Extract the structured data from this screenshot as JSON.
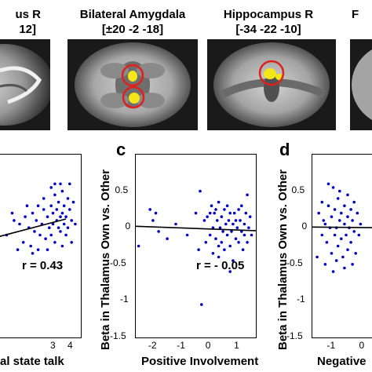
{
  "panels": {
    "top": [
      {
        "title": "us R",
        "coords": "12]"
      },
      {
        "title": "Bilateral Amygdala",
        "coords": "[±20 -2 -18]"
      },
      {
        "title": "Hippocampus R",
        "coords": "[-34 -22 -10]"
      },
      {
        "title": "F",
        "coords": ""
      }
    ],
    "letters": {
      "c": "c",
      "d": "d"
    }
  },
  "colors": {
    "points": "#0000cc",
    "roi_circle": "#e0201c",
    "activation": "#f5e61a",
    "fit_line": "#000000"
  },
  "chart_data": [
    {
      "type": "scatter",
      "panel": "b",
      "xlabel": "al state talk",
      "ylabel": "",
      "annotation": "r = 0.43",
      "xlim": [
        0.2,
        4.6
      ],
      "ylim": [
        -1.5,
        1.0
      ],
      "xticks": [
        3,
        4
      ],
      "fit": {
        "x": [
          0.2,
          3.8
        ],
        "y": [
          -0.12,
          0.12
        ]
      },
      "points": [
        [
          0.6,
          -0.1
        ],
        [
          1.0,
          0.1
        ],
        [
          1.3,
          0.05
        ],
        [
          1.5,
          -0.2
        ],
        [
          1.6,
          0.15
        ],
        [
          1.8,
          0.0
        ],
        [
          1.9,
          -0.25
        ],
        [
          2.0,
          0.2
        ],
        [
          2.1,
          -0.05
        ],
        [
          2.2,
          0.1
        ],
        [
          2.3,
          0.3
        ],
        [
          2.4,
          -0.1
        ],
        [
          2.5,
          0.05
        ],
        [
          2.6,
          0.25
        ],
        [
          2.7,
          -0.15
        ],
        [
          2.8,
          0.15
        ],
        [
          2.9,
          0.0
        ],
        [
          3.0,
          0.3
        ],
        [
          3.0,
          -0.1
        ],
        [
          3.1,
          0.2
        ],
        [
          3.1,
          0.05
        ],
        [
          3.2,
          0.45
        ],
        [
          3.2,
          -0.2
        ],
        [
          3.3,
          0.1
        ],
        [
          3.3,
          0.25
        ],
        [
          3.4,
          0.0
        ],
        [
          3.4,
          0.35
        ],
        [
          3.5,
          0.15
        ],
        [
          3.5,
          -0.05
        ],
        [
          3.6,
          0.5
        ],
        [
          3.6,
          0.2
        ],
        [
          3.7,
          0.05
        ],
        [
          3.7,
          0.3
        ],
        [
          3.8,
          -0.1
        ],
        [
          3.8,
          0.15
        ],
        [
          3.9,
          0.4
        ],
        [
          3.9,
          0.0
        ],
        [
          4.0,
          0.25
        ],
        [
          4.1,
          0.1
        ],
        [
          4.1,
          -0.2
        ],
        [
          4.2,
          0.35
        ],
        [
          1.2,
          -0.3
        ],
        [
          2.0,
          -0.35
        ],
        [
          3.5,
          0.6
        ],
        [
          2.6,
          0.4
        ],
        [
          3.0,
          0.55
        ],
        [
          4.0,
          0.6
        ],
        [
          1.7,
          0.3
        ],
        [
          2.3,
          -0.3
        ],
        [
          3.6,
          -0.25
        ],
        [
          0.9,
          0.2
        ],
        [
          2.8,
          -0.3
        ],
        [
          3.2,
          0.6
        ],
        [
          4.3,
          0.05
        ]
      ]
    },
    {
      "type": "scatter",
      "panel": "c",
      "xlabel": "Positive Involvement",
      "ylabel": "Beta in Thalamus  Own vs. Other",
      "annotation": "r = - 0.05",
      "xlim": [
        -2.6,
        1.6
      ],
      "ylim": [
        -1.5,
        1.0
      ],
      "xticks": [
        -2,
        -1,
        0,
        1
      ],
      "yticks": [
        -1.5,
        -1,
        -0.5,
        0,
        0.5
      ],
      "fit": {
        "x": [
          -2.6,
          1.6
        ],
        "y": [
          0.02,
          -0.04
        ]
      },
      "points": [
        [
          -2.1,
          0.25
        ],
        [
          -2.0,
          0.1
        ],
        [
          -1.9,
          0.2
        ],
        [
          -1.8,
          -0.05
        ],
        [
          -1.5,
          -0.15
        ],
        [
          -2.5,
          -0.25
        ],
        [
          -1.2,
          0.05
        ],
        [
          -0.8,
          -0.1
        ],
        [
          -0.5,
          0.2
        ],
        [
          -0.4,
          -0.3
        ],
        [
          -0.35,
          0.5
        ],
        [
          -0.3,
          -1.05
        ],
        [
          -0.2,
          0.1
        ],
        [
          -0.15,
          -0.2
        ],
        [
          -0.1,
          0.15
        ],
        [
          0.0,
          -0.1
        ],
        [
          0.05,
          0.3
        ],
        [
          0.1,
          0.0
        ],
        [
          0.1,
          -0.35
        ],
        [
          0.15,
          0.2
        ],
        [
          0.2,
          -0.15
        ],
        [
          0.25,
          0.1
        ],
        [
          0.3,
          -0.4
        ],
        [
          0.3,
          0.35
        ],
        [
          0.35,
          0.0
        ],
        [
          0.4,
          -0.2
        ],
        [
          0.4,
          0.15
        ],
        [
          0.45,
          -0.05
        ],
        [
          0.5,
          0.25
        ],
        [
          0.5,
          -0.3
        ],
        [
          0.55,
          0.05
        ],
        [
          0.6,
          -0.1
        ],
        [
          0.6,
          0.3
        ],
        [
          0.65,
          0.1
        ],
        [
          0.7,
          -0.25
        ],
        [
          0.7,
          0.2
        ],
        [
          0.75,
          -0.05
        ],
        [
          0.8,
          0.05
        ],
        [
          0.8,
          -0.45
        ],
        [
          0.85,
          0.2
        ],
        [
          0.9,
          -0.15
        ],
        [
          0.9,
          0.1
        ],
        [
          0.95,
          0.0
        ],
        [
          1.0,
          0.25
        ],
        [
          1.0,
          -0.2
        ],
        [
          1.05,
          0.1
        ],
        [
          1.1,
          -0.05
        ],
        [
          1.1,
          0.3
        ],
        [
          1.15,
          -0.3
        ],
        [
          1.2,
          0.05
        ],
        [
          1.2,
          -0.1
        ],
        [
          1.25,
          0.2
        ],
        [
          1.3,
          -0.2
        ],
        [
          1.35,
          0.0
        ],
        [
          1.4,
          0.15
        ],
        [
          1.45,
          -0.1
        ],
        [
          0.3,
          -0.25
        ],
        [
          0.0,
          0.2
        ],
        [
          0.2,
          0.25
        ],
        [
          0.7,
          -0.6
        ],
        [
          1.3,
          0.45
        ]
      ]
    },
    {
      "type": "scatter",
      "panel": "d",
      "xlabel": "Negative",
      "ylabel": "Beta in Thalamus  Own vs. Other",
      "annotation": "",
      "xlim": [
        -1.6,
        0.6
      ],
      "ylim": [
        -1.5,
        1.0
      ],
      "xticks": [
        -1,
        0
      ],
      "yticks": [
        -1.5,
        -1,
        -0.5,
        0,
        0.5
      ],
      "fit": {
        "x": [
          -1.6,
          0.6
        ],
        "y": [
          0.01,
          0.0
        ]
      },
      "points": [
        [
          -1.4,
          0.2
        ],
        [
          -1.3,
          -0.1
        ],
        [
          -1.3,
          0.35
        ],
        [
          -1.2,
          0.05
        ],
        [
          -1.15,
          -0.2
        ],
        [
          -1.1,
          0.3
        ],
        [
          -1.05,
          0.0
        ],
        [
          -1.0,
          -0.35
        ],
        [
          -1.0,
          0.15
        ],
        [
          -0.95,
          0.55
        ],
        [
          -0.9,
          -0.1
        ],
        [
          -0.9,
          0.25
        ],
        [
          -0.85,
          0.0
        ],
        [
          -0.8,
          -0.25
        ],
        [
          -0.8,
          0.4
        ],
        [
          -0.75,
          0.1
        ],
        [
          -0.7,
          -0.15
        ],
        [
          -0.7,
          0.2
        ],
        [
          -0.65,
          -0.4
        ],
        [
          -0.6,
          0.05
        ],
        [
          -0.6,
          0.3
        ],
        [
          -0.55,
          -0.1
        ],
        [
          -0.5,
          0.15
        ],
        [
          -0.5,
          -0.3
        ],
        [
          -0.45,
          0.0
        ],
        [
          -0.4,
          0.25
        ],
        [
          -0.4,
          -0.2
        ],
        [
          -0.35,
          0.1
        ],
        [
          -0.3,
          -0.05
        ],
        [
          -0.3,
          0.35
        ],
        [
          -0.25,
          -0.35
        ],
        [
          -0.2,
          0.2
        ],
        [
          -0.15,
          -0.1
        ],
        [
          -0.1,
          0.05
        ],
        [
          -1.45,
          -0.4
        ],
        [
          -1.2,
          -0.5
        ],
        [
          -1.1,
          0.6
        ],
        [
          -0.95,
          -0.6
        ],
        [
          -0.75,
          0.5
        ],
        [
          -0.6,
          -0.55
        ],
        [
          -0.5,
          0.45
        ],
        [
          -0.35,
          -0.5
        ],
        [
          -1.25,
          0.1
        ],
        [
          -0.85,
          -0.45
        ]
      ]
    }
  ]
}
